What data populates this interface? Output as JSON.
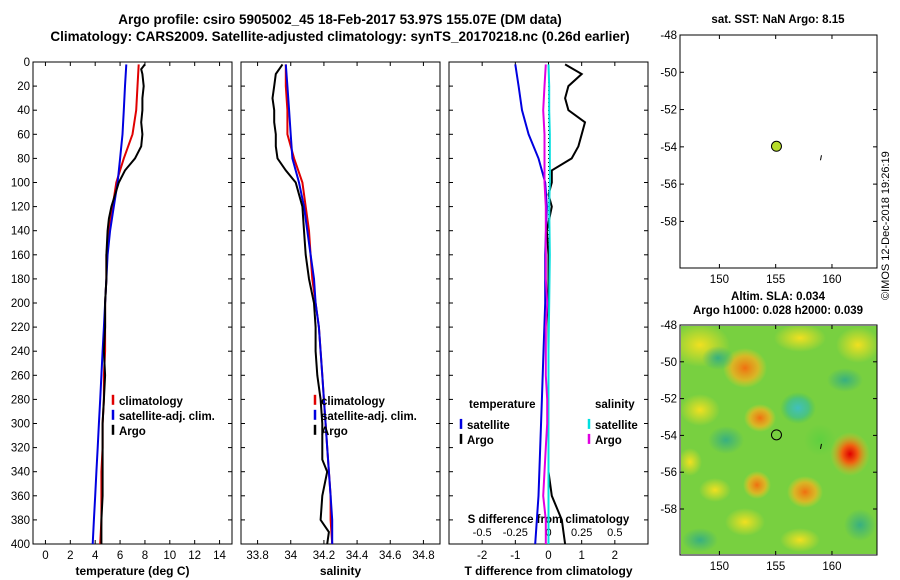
{
  "header": {
    "line1": "Argo profile: csiro 5905002_45 18-Feb-2017 53.97S 155.07E (DM data)",
    "line2": "Climatology: CARS2009. Satellite-adjusted climatology: synTS_20170218.nc (0.26d earlier)"
  },
  "side_text": "©IMOS 12-Dec-2018 19:26:19",
  "map_top": {
    "title": "sat. SST: NaN Argo: 8.15",
    "lat_ticks": [
      "-48",
      "-50",
      "-52",
      "-54",
      "-56",
      "-58"
    ],
    "lon_ticks": [
      "150",
      "155",
      "160"
    ],
    "point": {
      "lon": 155.07,
      "lat": -53.97
    },
    "colors": {
      "point_fill": "#b6dc2a"
    }
  },
  "map_bottom": {
    "title1": "Altim. SLA: 0.034",
    "title2": "Argo h1000: 0.028 h2000: 0.039",
    "lat_ticks": [
      "-48",
      "-50",
      "-52",
      "-54",
      "-56",
      "-58"
    ],
    "lon_ticks": [
      "150",
      "155",
      "160"
    ],
    "point": {
      "lon": 155.07,
      "lat": -53.97
    }
  },
  "chart_data": [
    {
      "type": "line",
      "xlabel": "temperature (deg C)",
      "xlim": [
        -1,
        15
      ],
      "xticks": [
        "0",
        "2",
        "4",
        "6",
        "8",
        "10",
        "12",
        "14"
      ],
      "ylim": [
        400,
        0
      ],
      "yticks": [
        "0",
        "20",
        "40",
        "60",
        "80",
        "100",
        "120",
        "140",
        "160",
        "180",
        "200",
        "220",
        "240",
        "260",
        "280",
        "300",
        "320",
        "340",
        "360",
        "380",
        "400"
      ],
      "legend": {
        "position": "lower-right",
        "labels": [
          "climatology",
          "satellite-adj. clim.",
          "Argo"
        ]
      },
      "series": [
        {
          "name": "climatology",
          "color": "#e00000",
          "depth": [
            2,
            20,
            40,
            60,
            80,
            100,
            120,
            140,
            160,
            180,
            200,
            220,
            240,
            260,
            280,
            300,
            320,
            340,
            360,
            380,
            400
          ],
          "values": [
            7.5,
            7.4,
            7.3,
            7.0,
            6.3,
            5.7,
            5.4,
            5.1,
            4.9,
            4.9,
            4.8,
            4.8,
            4.8,
            4.7,
            4.7,
            4.6,
            4.6,
            4.5,
            4.5,
            4.5,
            4.4
          ]
        },
        {
          "name": "satellite-adj. clim.",
          "color": "#0000e0",
          "depth": [
            2,
            20,
            40,
            60,
            80,
            100,
            120,
            140,
            160,
            180,
            200,
            220,
            240,
            260,
            280,
            300,
            320,
            340,
            360,
            380,
            400
          ],
          "values": [
            6.5,
            6.4,
            6.3,
            6.2,
            6.0,
            5.8,
            5.5,
            5.2,
            5.0,
            4.9,
            4.8,
            4.7,
            4.6,
            4.5,
            4.4,
            4.3,
            4.2,
            4.1,
            4.0,
            3.9,
            3.8
          ]
        },
        {
          "name": "Argo",
          "color": "#000000",
          "depth": [
            2,
            6,
            10,
            20,
            30,
            40,
            50,
            60,
            70,
            80,
            90,
            100,
            110,
            120,
            130,
            140,
            160,
            180,
            200,
            220,
            240,
            260,
            280,
            300,
            320,
            340,
            360,
            380,
            400
          ],
          "values": [
            8.0,
            7.7,
            7.8,
            7.9,
            7.8,
            7.8,
            7.7,
            7.8,
            7.7,
            7.2,
            6.4,
            5.9,
            5.6,
            5.3,
            5.1,
            5.0,
            4.9,
            4.9,
            4.8,
            4.8,
            4.7,
            4.8,
            4.7,
            4.6,
            4.6,
            4.6,
            4.6,
            4.5,
            4.5
          ]
        }
      ]
    },
    {
      "type": "line",
      "xlabel": "salinity",
      "xlim": [
        33.7,
        34.9
      ],
      "xticks": [
        "33.8",
        "34",
        "34.2",
        "34.4",
        "34.6",
        "34.8"
      ],
      "ylim": [
        400,
        0
      ],
      "legend": {
        "position": "lower-right",
        "labels": [
          "climatology",
          "satellite-adj. clim.",
          "Argo"
        ]
      },
      "series": [
        {
          "name": "climatology",
          "color": "#e00000",
          "depth": [
            2,
            20,
            40,
            60,
            80,
            100,
            120,
            140,
            160,
            180,
            200,
            220,
            240,
            260,
            280,
            300,
            320,
            340,
            360,
            380,
            400
          ],
          "values": [
            33.97,
            33.97,
            33.98,
            33.98,
            34.02,
            34.07,
            34.09,
            34.11,
            34.12,
            34.13,
            34.15,
            34.17,
            34.18,
            34.19,
            34.2,
            34.21,
            34.22,
            34.23,
            34.24,
            34.24,
            34.25
          ]
        },
        {
          "name": "satellite-adj. clim.",
          "color": "#0000e0",
          "depth": [
            2,
            20,
            40,
            60,
            80,
            100,
            120,
            140,
            160,
            180,
            200,
            220,
            240,
            260,
            280,
            300,
            320,
            340,
            360,
            380,
            400
          ],
          "values": [
            33.97,
            33.98,
            33.99,
            34.0,
            34.01,
            34.05,
            34.08,
            34.1,
            34.12,
            34.14,
            34.15,
            34.17,
            34.18,
            34.19,
            34.2,
            34.21,
            34.22,
            34.23,
            34.24,
            34.25,
            34.25
          ]
        },
        {
          "name": "Argo",
          "color": "#000000",
          "depth": [
            2,
            10,
            20,
            30,
            40,
            50,
            60,
            70,
            80,
            90,
            100,
            120,
            140,
            160,
            180,
            200,
            220,
            240,
            260,
            280,
            300,
            310,
            320,
            330,
            340,
            360,
            380,
            390,
            400
          ],
          "values": [
            33.95,
            33.91,
            33.9,
            33.89,
            33.9,
            33.9,
            33.91,
            33.91,
            33.92,
            33.97,
            34.03,
            34.07,
            34.08,
            34.09,
            34.11,
            34.14,
            34.15,
            34.15,
            34.16,
            34.18,
            34.19,
            34.19,
            34.19,
            34.19,
            34.22,
            34.19,
            34.18,
            34.23,
            34.22
          ]
        }
      ]
    },
    {
      "type": "line",
      "xlabel": "T difference from climatology",
      "xlim": [
        -3,
        3
      ],
      "xticks": [
        "-2",
        "-1",
        "0",
        "1",
        "2"
      ],
      "top_xlabel": "S difference from climatology",
      "top_xticks": [
        "-0.5",
        "-0.25",
        "0",
        "0.25",
        "0.5"
      ],
      "ylim": [
        400,
        0
      ],
      "legend": {
        "position": "center-right",
        "temperature_header": "temperature",
        "salinity_header": "salinity",
        "labels": [
          "satellite",
          "Argo",
          "satellite",
          "Argo"
        ]
      },
      "series": [
        {
          "name": "temperature satellite",
          "color": "#0000e0",
          "depth": [
            2,
            20,
            40,
            60,
            80,
            100,
            120,
            160,
            200,
            240,
            280,
            320,
            360,
            400
          ],
          "values": [
            -1.0,
            -0.9,
            -0.8,
            -0.6,
            -0.3,
            -0.1,
            -0.05,
            -0.1,
            -0.1,
            -0.15,
            -0.2,
            -0.25,
            -0.3,
            -0.4
          ]
        },
        {
          "name": "temperature Argo",
          "color": "#000000",
          "depth": [
            2,
            10,
            20,
            30,
            40,
            50,
            60,
            70,
            80,
            90,
            100,
            110,
            120,
            140,
            160,
            180,
            200,
            220,
            240,
            260,
            280,
            300,
            320,
            340,
            360,
            380,
            400
          ],
          "values": [
            0.5,
            1.0,
            0.6,
            0.5,
            0.6,
            1.1,
            1.0,
            0.9,
            0.7,
            0.1,
            0.1,
            0.0,
            0.1,
            -0.05,
            0.0,
            0.0,
            0.0,
            0.0,
            0.0,
            0.0,
            0.0,
            0.0,
            0.0,
            0.0,
            0.1,
            0.4,
            0.5
          ]
        },
        {
          "name": "salinity satellite",
          "color": "#00e0e0",
          "depth": [
            2,
            20,
            40,
            60,
            80,
            100,
            120,
            160,
            200,
            240,
            280,
            320,
            360,
            400
          ],
          "values": [
            0.0,
            0.005,
            0.005,
            0.01,
            0.01,
            0.01,
            0.005,
            0.01,
            0.005,
            0.0,
            0.0,
            0.0,
            0.0,
            0.0
          ]
        },
        {
          "name": "salinity Argo",
          "color": "#e000e0",
          "depth": [
            2,
            20,
            40,
            60,
            80,
            100,
            120,
            140,
            160,
            180,
            200,
            220,
            240,
            260,
            280,
            300,
            320,
            340,
            360,
            380,
            400
          ],
          "values": [
            -0.02,
            -0.03,
            -0.04,
            -0.03,
            -0.03,
            -0.03,
            -0.02,
            -0.02,
            -0.02,
            -0.02,
            -0.01,
            -0.02,
            -0.02,
            -0.02,
            -0.01,
            -0.01,
            -0.02,
            -0.03,
            -0.04,
            -0.02,
            -0.02
          ]
        }
      ]
    }
  ]
}
